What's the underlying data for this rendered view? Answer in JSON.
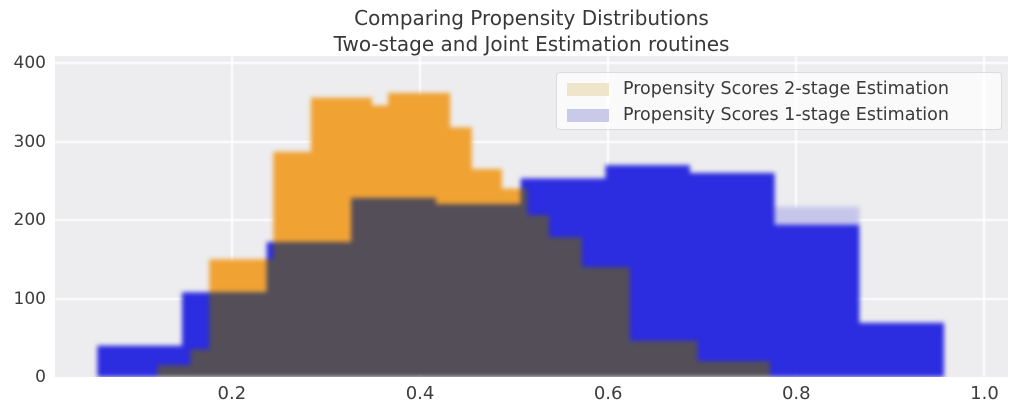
{
  "title": {
    "line1": "Comparing Propensity Distributions",
    "line2": "Two-stage and Joint Estimation routines"
  },
  "legend": {
    "items": [
      {
        "label": "Propensity Scores 2-stage Estimation",
        "swatch_color": "#efe5cb"
      },
      {
        "label": "Propensity Scores 1-stage Estimation",
        "swatch_color": "#c9c9e9"
      }
    ]
  },
  "axes": {
    "x_tick_labels": [
      "0.2",
      "0.4",
      "0.6",
      "0.8",
      "1.0"
    ],
    "y_tick_labels": [
      "0",
      "100",
      "200",
      "300",
      "400"
    ]
  },
  "chart_data": {
    "type": "histogram",
    "title": "Comparing Propensity Distributions — Two-stage and Joint Estimation routines",
    "xlabel": "",
    "ylabel": "",
    "xlim": [
      0.012,
      1.025
    ],
    "ylim": [
      0,
      409
    ],
    "x_ticks": [
      0.2,
      0.4,
      0.6,
      0.8,
      1.0
    ],
    "y_ticks": [
      0,
      100,
      200,
      300,
      400
    ],
    "grid": true,
    "legend_position": "upper right",
    "plot_background": "#ededef",
    "gridline_color": "#ffffff",
    "overlap_color": "#534e58",
    "series": [
      {
        "name": "Propensity Scores 2-stage Estimation",
        "color": "#f0a233",
        "bins": [
          [
            0.121,
            0.156,
            15
          ],
          [
            0.156,
            0.176,
            35
          ],
          [
            0.176,
            0.244,
            150
          ],
          [
            0.244,
            0.284,
            287
          ],
          [
            0.284,
            0.349,
            356
          ],
          [
            0.349,
            0.366,
            346
          ],
          [
            0.366,
            0.432,
            362
          ],
          [
            0.432,
            0.455,
            318
          ],
          [
            0.455,
            0.487,
            265
          ],
          [
            0.487,
            0.514,
            240
          ],
          [
            0.514,
            0.537,
            206
          ],
          [
            0.537,
            0.572,
            178
          ],
          [
            0.572,
            0.623,
            140
          ],
          [
            0.623,
            0.695,
            46
          ],
          [
            0.695,
            0.772,
            20
          ]
        ]
      },
      {
        "name": "Propensity Scores 1-stage Estimation",
        "color": "#2c2ce0",
        "bins": [
          [
            0.057,
            0.147,
            40
          ],
          [
            0.147,
            0.237,
            108
          ],
          [
            0.237,
            0.327,
            172
          ],
          [
            0.327,
            0.417,
            228
          ],
          [
            0.417,
            0.507,
            220
          ],
          [
            0.507,
            0.597,
            253
          ],
          [
            0.597,
            0.687,
            270
          ],
          [
            0.687,
            0.777,
            260
          ],
          [
            0.777,
            0.867,
            194
          ],
          [
            0.867,
            0.957,
            69
          ]
        ],
        "light_cap_bins": [
          [
            0.777,
            0.867,
            217
          ]
        ],
        "light_cap_color": "#c6c6ec"
      }
    ]
  }
}
